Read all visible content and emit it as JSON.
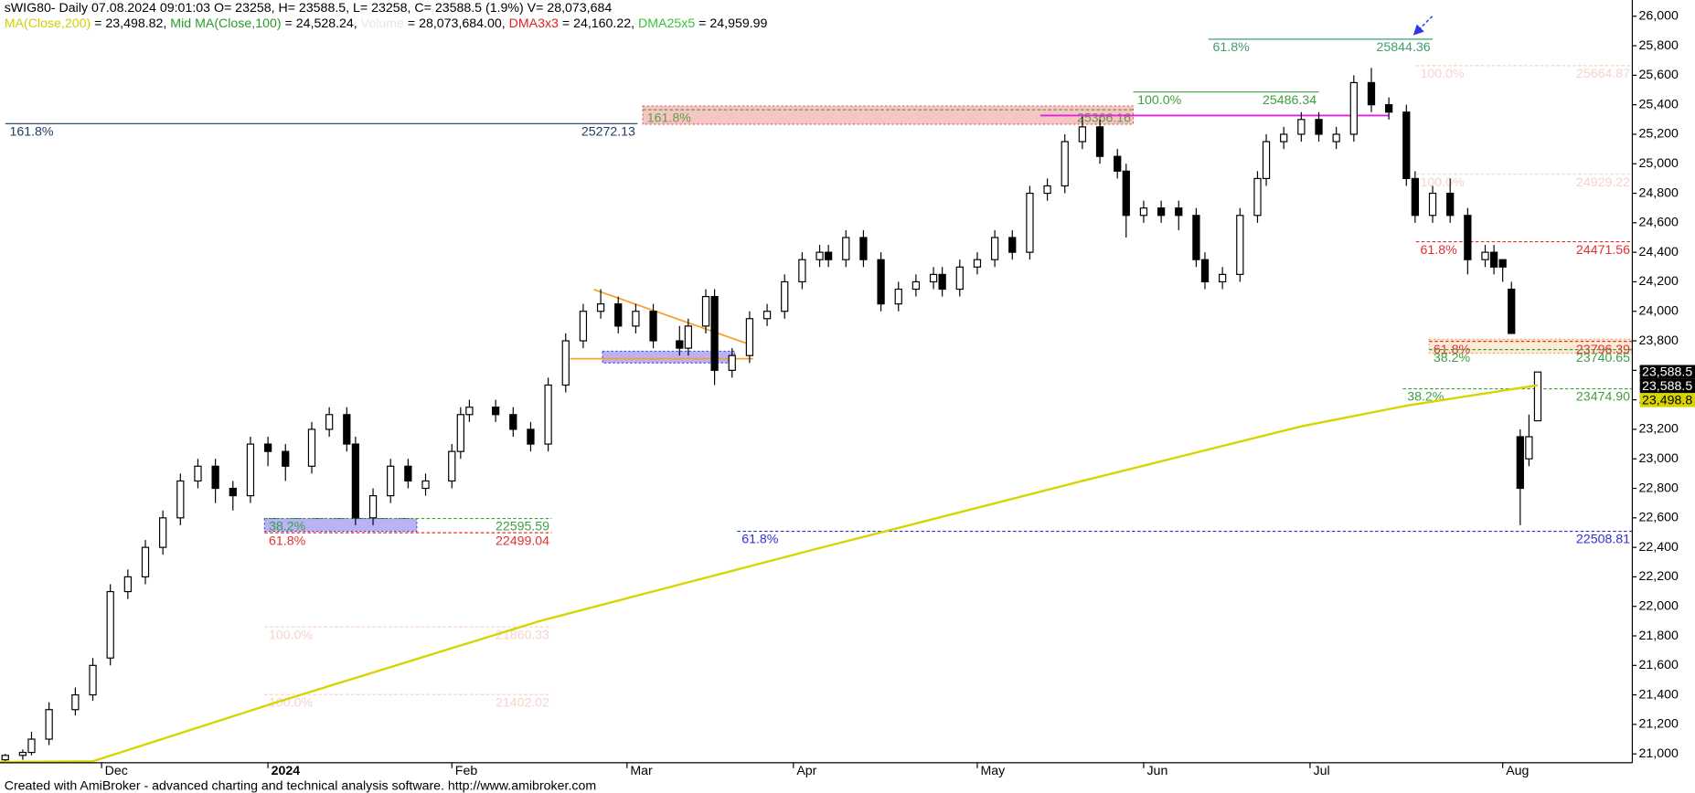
{
  "header": {
    "title": "sWIG80- Daily 07.08.2024 09:01:03 O= 23258, H= 23588.5, L= 23258, C= 23588.5 (1.9%) V= 28,073,684",
    "indicators": [
      {
        "name": "MA(Close,200)",
        "color": "#d0d000",
        "text": " = 23,498.82, "
      },
      {
        "name": "Mid MA(Close,100)",
        "color": "#2a9a2a",
        "text": " = 24,528.24, "
      },
      {
        "name": "Volume",
        "color": "#e6e6e6",
        "text": " = 28,073,684.00, "
      },
      {
        "name": "DMA3x3",
        "color": "#e02020",
        "text": " = 24,160.22, "
      },
      {
        "name": "DMA25x5",
        "color": "#3cc03c",
        "text": " = 24,959.99"
      }
    ]
  },
  "footer": "Created with AmiBroker - advanced charting and technical analysis software. http://www.amibroker.com",
  "chart_data": {
    "type": "candlestick",
    "xlim": [
      -0.6,
      185.8
    ],
    "ylim": [
      20940,
      26110
    ],
    "grid": false,
    "xticks": [
      {
        "value": 11,
        "label": "Dec"
      },
      {
        "value": 30,
        "label": "2024"
      },
      {
        "value": 51,
        "label": "Feb"
      },
      {
        "value": 71,
        "label": "Mar"
      },
      {
        "value": 90,
        "label": "Apr"
      },
      {
        "value": 111,
        "label": "May"
      },
      {
        "value": 130,
        "label": "Jun"
      },
      {
        "value": 149,
        "label": "Jul"
      },
      {
        "value": 171,
        "label": "Aug"
      }
    ],
    "yticks": [
      {
        "value": 21000,
        "label": "21,000"
      },
      {
        "value": 21200,
        "label": "21,200"
      },
      {
        "value": 21400,
        "label": "21,400"
      },
      {
        "value": 21600,
        "label": "21,600"
      },
      {
        "value": 21800,
        "label": "21,800"
      },
      {
        "value": 22000,
        "label": "22,000"
      },
      {
        "value": 22200,
        "label": "22,200"
      },
      {
        "value": 22400,
        "label": "22,400"
      },
      {
        "value": 22600,
        "label": "22,600"
      },
      {
        "value": 22800,
        "label": "22,800"
      },
      {
        "value": 23000,
        "label": "23,000"
      },
      {
        "value": 23200,
        "label": "23,200"
      },
      {
        "value": 23400,
        "label": "23,400"
      },
      {
        "value": 23600,
        "label": "23,600"
      },
      {
        "value": 23800,
        "label": "23,800"
      },
      {
        "value": 24000,
        "label": "24,000"
      },
      {
        "value": 24200,
        "label": "24,200"
      },
      {
        "value": 24400,
        "label": "24,400"
      },
      {
        "value": 24600,
        "label": "24,600"
      },
      {
        "value": 24800,
        "label": "24,800"
      },
      {
        "value": 25000,
        "label": "25,000"
      },
      {
        "value": 25200,
        "label": "25,200"
      },
      {
        "value": 25400,
        "label": "25,400"
      },
      {
        "value": 25600,
        "label": "25,600"
      },
      {
        "value": 25800,
        "label": "25,800"
      },
      {
        "value": 26000,
        "label": "26,000"
      }
    ],
    "series": [
      {
        "up_color": "#ffffff",
        "down_color": "#000000",
        "x": [
          0,
          2,
          3,
          5,
          8,
          10,
          12,
          14,
          16,
          18,
          20,
          22,
          24,
          26,
          28,
          30,
          32,
          35,
          37,
          39,
          40,
          42,
          44,
          46,
          48,
          51,
          52,
          53,
          56,
          58,
          60,
          62,
          64,
          66,
          68,
          70,
          72,
          74,
          77,
          78,
          80,
          81,
          83,
          85,
          87,
          89,
          91,
          93,
          94,
          96,
          98,
          100,
          102,
          104,
          106,
          107,
          109,
          111,
          113,
          115,
          117,
          119,
          121,
          123,
          125,
          127,
          128,
          130,
          132,
          134,
          136,
          137,
          139,
          141,
          143,
          144,
          146,
          148,
          150,
          152,
          154,
          156,
          158,
          160,
          161,
          163,
          165,
          167,
          169,
          170,
          171,
          172,
          173,
          174,
          175
        ],
        "open": [
          20960,
          20990,
          21010,
          21100,
          21300,
          21400,
          21650,
          22100,
          22200,
          22400,
          22600,
          22850,
          22950,
          22800,
          22750,
          23100,
          23050,
          22950,
          23200,
          23300,
          23100,
          22600,
          22750,
          22950,
          22800,
          22850,
          23050,
          23300,
          23350,
          23300,
          23200,
          23100,
          23500,
          23800,
          24000,
          24050,
          23900,
          24000,
          23800,
          23750,
          23900,
          24100,
          23600,
          23700,
          23950,
          24000,
          24200,
          24350,
          24400,
          24350,
          24500,
          24350,
          24050,
          24150,
          24200,
          24250,
          24150,
          24300,
          24350,
          24500,
          24400,
          24800,
          24850,
          25150,
          25250,
          25050,
          24950,
          24650,
          24700,
          24700,
          24650,
          24350,
          24200,
          24250,
          24650,
          24900,
          25150,
          25200,
          25300,
          25150,
          25200,
          25550,
          25400,
          25350,
          24900,
          24650,
          24800,
          24650,
          24350,
          24400,
          24350,
          24150,
          23150,
          23000,
          23258
        ],
        "high": [
          21000,
          21030,
          21150,
          21350,
          21450,
          21650,
          22150,
          22250,
          22450,
          22650,
          22900,
          23000,
          23000,
          22850,
          23150,
          23150,
          23100,
          23250,
          23350,
          23350,
          23150,
          22800,
          23000,
          23000,
          22900,
          23100,
          23350,
          23400,
          23400,
          23350,
          23250,
          23550,
          23850,
          24050,
          24150,
          24100,
          24050,
          24050,
          23900,
          23950,
          24150,
          24150,
          23750,
          24000,
          24050,
          24250,
          24400,
          24450,
          24450,
          24550,
          24550,
          24400,
          24200,
          24250,
          24300,
          24300,
          24350,
          24400,
          24550,
          24550,
          24850,
          24900,
          25200,
          25320,
          25300,
          25100,
          25000,
          24750,
          24750,
          24750,
          24700,
          24400,
          24300,
          24700,
          24950,
          25200,
          25250,
          25350,
          25350,
          25250,
          25600,
          25650,
          25450,
          25400,
          24950,
          24850,
          24900,
          24700,
          24450,
          24450,
          24350,
          24200,
          23200,
          23300,
          23588.5
        ],
        "low": [
          20945,
          20960,
          20990,
          21060,
          21260,
          21360,
          21600,
          22050,
          22150,
          22350,
          22550,
          22800,
          22700,
          22650,
          22700,
          22950,
          22850,
          22900,
          23150,
          23050,
          22550,
          22550,
          22700,
          22800,
          22750,
          22800,
          23000,
          23250,
          23250,
          23150,
          23050,
          23050,
          23450,
          23750,
          23950,
          23850,
          23850,
          23750,
          23700,
          23700,
          23850,
          23500,
          23550,
          23650,
          23900,
          23950,
          24150,
          24300,
          24300,
          24300,
          24300,
          24000,
          24000,
          24100,
          24150,
          24100,
          24100,
          24250,
          24300,
          24350,
          24350,
          24750,
          24800,
          25100,
          25000,
          24900,
          24500,
          24600,
          24600,
          24550,
          24300,
          24150,
          24150,
          24200,
          24600,
          24850,
          25100,
          25150,
          25150,
          25100,
          25150,
          25350,
          25300,
          24850,
          24600,
          24600,
          24600,
          24250,
          24300,
          24250,
          24200,
          23850,
          22550,
          22950,
          23258
        ],
        "close": [
          20990,
          21010,
          21100,
          21300,
          21400,
          21600,
          22100,
          22200,
          22400,
          22600,
          22850,
          22950,
          22800,
          22750,
          23100,
          23050,
          22950,
          23200,
          23300,
          23100,
          22600,
          22750,
          22950,
          22850,
          22850,
          23050,
          23300,
          23350,
          23300,
          23200,
          23100,
          23500,
          23800,
          24000,
          24050,
          23900,
          24000,
          23800,
          23750,
          23900,
          24100,
          23600,
          23700,
          23950,
          24000,
          24200,
          24350,
          24400,
          24350,
          24500,
          24350,
          24050,
          24150,
          24200,
          24250,
          24150,
          24300,
          24350,
          24500,
          24400,
          24800,
          24850,
          25150,
          25250,
          25050,
          24950,
          24650,
          24700,
          24650,
          24650,
          24350,
          24200,
          24250,
          24650,
          24900,
          25150,
          25200,
          25300,
          25200,
          25200,
          25550,
          25400,
          25350,
          24900,
          24650,
          24800,
          24650,
          24350,
          24400,
          24300,
          24300,
          23850,
          22800,
          23150,
          23588.5
        ]
      }
    ],
    "overlays": [
      {
        "type": "line",
        "color": "#d8d400",
        "x": [
          -0.6,
          10,
          31,
          61,
          92,
          123,
          148,
          160,
          175
        ],
        "values": [
          20945,
          20950,
          21350,
          21900,
          22380,
          22850,
          23220,
          23360,
          23498.82
        ]
      }
    ],
    "levels": [
      {
        "pct": "161.8%",
        "value": 25272.13,
        "color": "#1f3a5f",
        "x_from": 0,
        "x_to": 72.2,
        "dash": false
      },
      {
        "pct": "161.8%",
        "value": 25366.16,
        "color": "#5f9f3f",
        "x_from": 72.8,
        "x_to": 128.8,
        "dash": true
      },
      {
        "pct": "100.0%",
        "value": 25486.34,
        "color": "#3f9f3f",
        "x_from": 128.8,
        "x_to": 150,
        "dash": false
      },
      {
        "pct": "61.8%",
        "value": 25844.36,
        "color": "#3f9f6f",
        "x_from": 137.4,
        "x_to": 163,
        "dash": false
      },
      {
        "pct": "100.0%",
        "value": 25664.87,
        "color": "#f4d4cc",
        "x_from": 161.1,
        "x_to": 185.8,
        "dash": true
      },
      {
        "pct": "100.0%",
        "value": 24929.22,
        "color": "#f4d4cc",
        "x_from": 161.1,
        "x_to": 185.8,
        "dash": true
      },
      {
        "pct": "61.8%",
        "value": 24471.56,
        "color": "#e03030",
        "x_from": 161.1,
        "x_to": 185.8,
        "dash": true
      },
      {
        "pct": "61.8%",
        "value": 23796.39,
        "color": "#e03030",
        "x_from": 162.6,
        "x_to": 185.8,
        "dash": true
      },
      {
        "pct": "38.2%",
        "value": 23740.65,
        "color": "#3f9f3f",
        "x_from": 162.6,
        "x_to": 185.8,
        "dash": true
      },
      {
        "pct": "38.2%",
        "value": 23474.9,
        "value_label": "23474.90",
        "color": "#3f9f3f",
        "x_from": 159.6,
        "x_to": 185.8,
        "dash": true
      },
      {
        "pct": "61.8%",
        "value": 22508.81,
        "color": "#3030d0",
        "x_from": 83.6,
        "x_to": 185.8,
        "dash": true
      },
      {
        "pct": "38.2%",
        "value": 22595.59,
        "color": "#3f9f3f",
        "x_from": 29.6,
        "x_to": 62.4,
        "dash": true
      },
      {
        "pct": "61.8%",
        "value": 22499.04,
        "color": "#e03030",
        "x_from": 29.6,
        "x_to": 62.4,
        "dash": true
      },
      {
        "pct": "100.0%",
        "value": 21860.33,
        "color": "#f4d4cc",
        "x_from": 29.6,
        "x_to": 62.4,
        "dash": true
      },
      {
        "pct": "100.0%",
        "value": 21402.02,
        "color": "#f4d4cc",
        "x_from": 29.6,
        "x_to": 62.4,
        "dash": true
      }
    ],
    "zones": [
      {
        "from": 72.8,
        "to": 128.8,
        "low": 25268,
        "high": 25392,
        "color": "#f4b8b8",
        "border": "#d05050"
      },
      {
        "from": 29.6,
        "to": 47,
        "low": 22508,
        "high": 22596,
        "color": "#a8a0f0",
        "border": "#3030d0"
      },
      {
        "from": 68.2,
        "to": 83.3,
        "low": 23650,
        "high": 23730,
        "color": "#a8a0f0",
        "border": "#3030d0"
      },
      {
        "from": 162.6,
        "to": 185.8,
        "low": 23716,
        "high": 23811,
        "color": "#fde6cc",
        "border": "#f0a060"
      }
    ],
    "trendlines": [
      {
        "color": "#f5a030",
        "x": [
          67.2,
          85.4
        ],
        "y": [
          24148,
          23767
        ]
      },
      {
        "color": "#f5a030",
        "x": [
          64.5,
          85.4
        ],
        "y": [
          23679,
          23679
        ]
      },
      {
        "color": "#e020e0",
        "x": [
          118.2,
          158
        ],
        "y": [
          25327,
          25327
        ]
      }
    ],
    "price_tags": [
      {
        "value": 23588.5,
        "label": "23,588.5",
        "bg": "#000000",
        "fg": "#ffffff"
      },
      {
        "value": 23588.5,
        "label": "23,588.5",
        "bg": "#000000",
        "fg": "#ffffff"
      },
      {
        "value": 23498.8,
        "label": "23,498.8",
        "bg": "#d8d400",
        "fg": "#000000"
      }
    ]
  }
}
